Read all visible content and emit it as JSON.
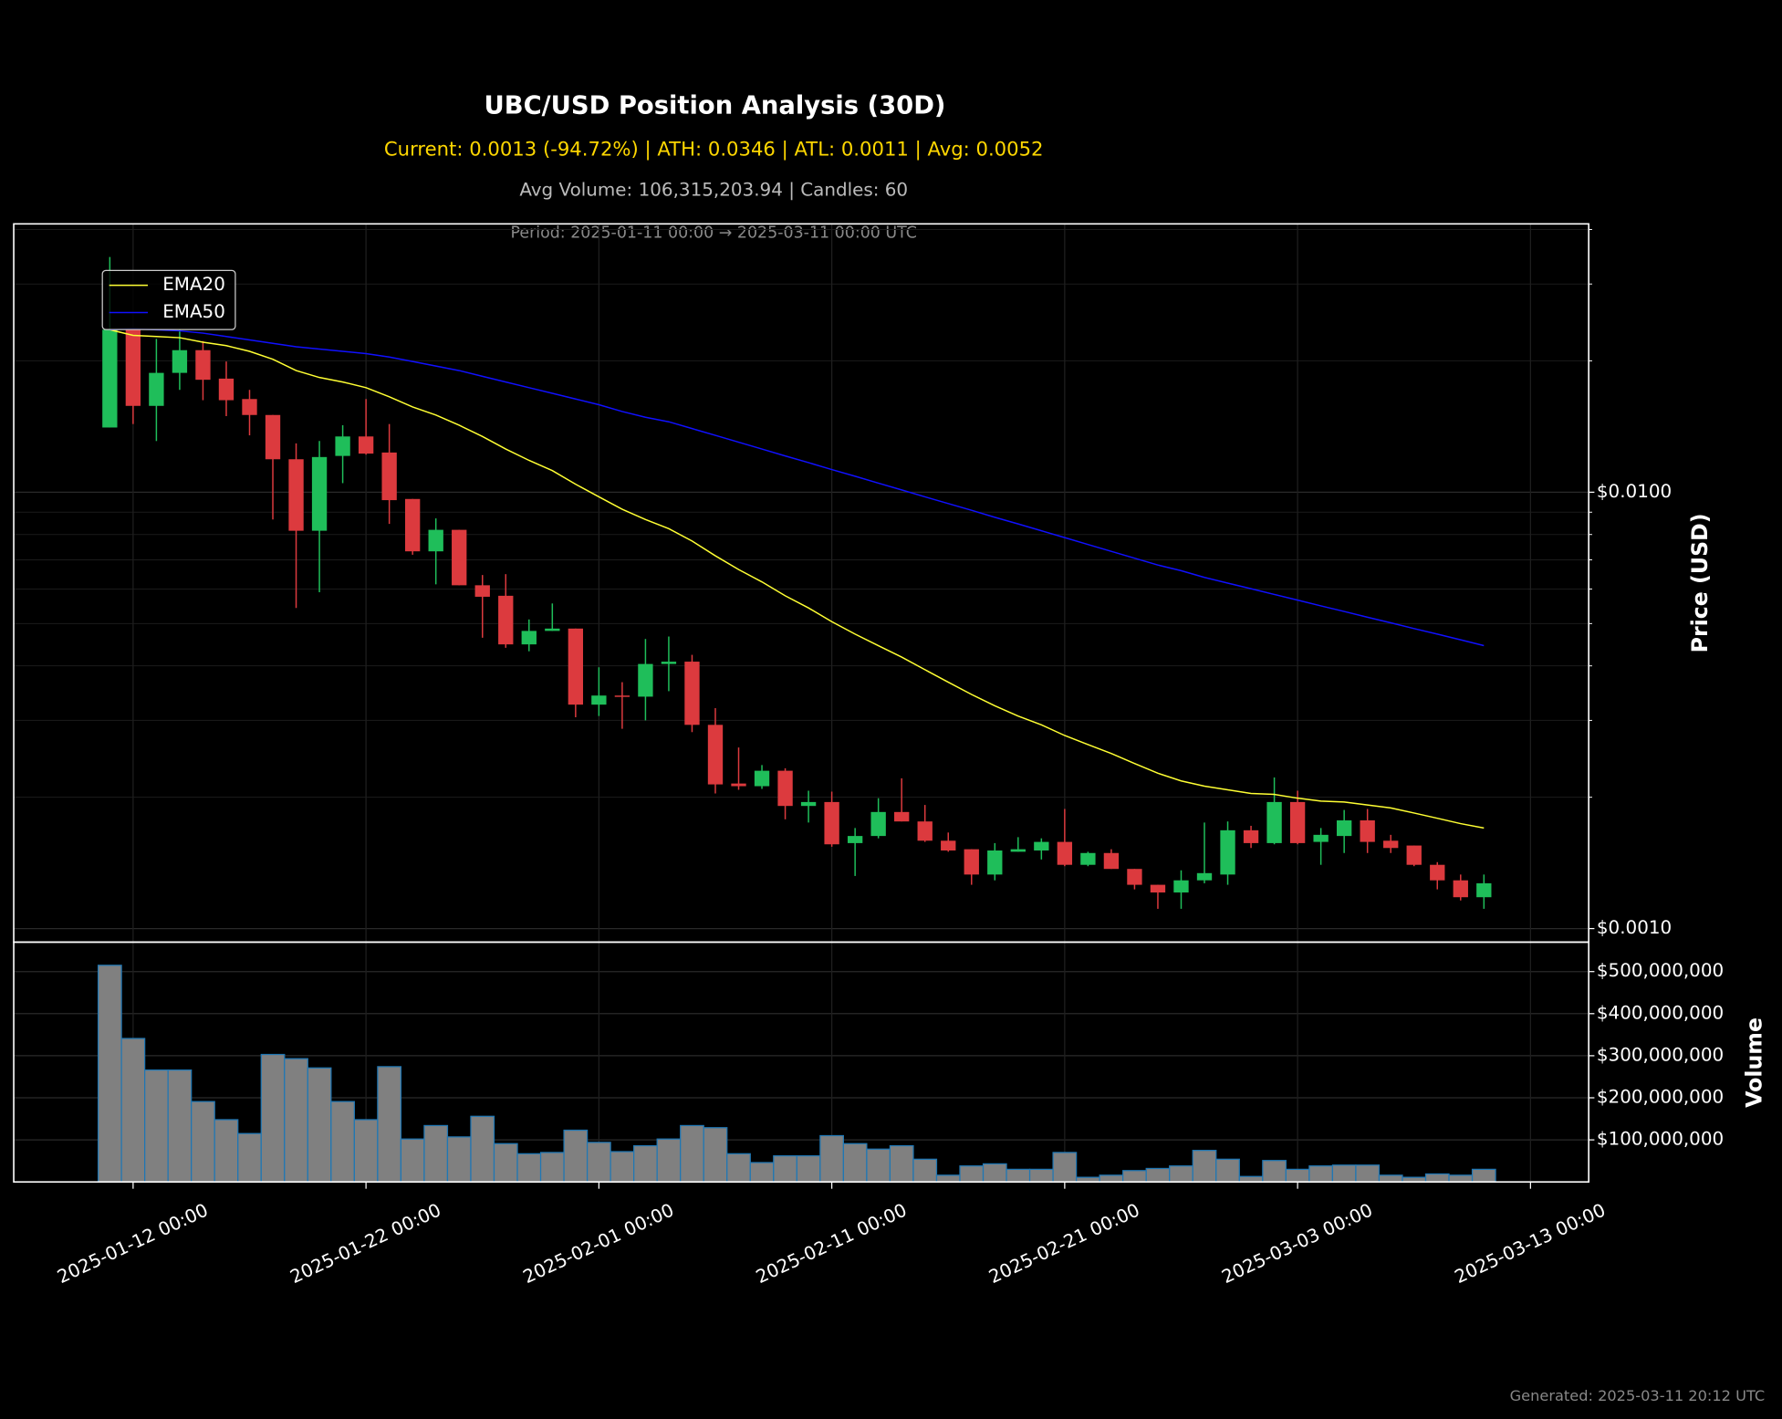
{
  "chart_data": [
    {
      "type": "candlestick",
      "title": "UBC/USD Position Analysis (30D)",
      "subtitle": "Current: 0.0013 (-94.72%) | ATH: 0.0346 | ATL: 0.0011 | Avg: 0.0052",
      "info": "Avg Volume: 106,315,203.94 | Candles: 60",
      "period": "Period: 2025-01-11 00:00 → 2025-03-11 00:00 UTC",
      "ylabel": "Price (USD)",
      "x": [
        "2025-01-11 00:00",
        "2025-01-12 00:00",
        "2025-01-13 00:00",
        "2025-01-14 00:00",
        "2025-01-15 00:00",
        "2025-01-16 00:00",
        "2025-01-17 00:00",
        "2025-01-18 00:00",
        "2025-01-19 00:00",
        "2025-01-20 00:00",
        "2025-01-21 00:00",
        "2025-01-22 00:00",
        "2025-01-23 00:00",
        "2025-01-24 00:00",
        "2025-01-25 00:00",
        "2025-01-26 00:00",
        "2025-01-27 00:00",
        "2025-01-28 00:00",
        "2025-01-29 00:00",
        "2025-01-30 00:00",
        "2025-01-31 00:00",
        "2025-02-01 00:00",
        "2025-02-02 00:00",
        "2025-02-03 00:00",
        "2025-02-04 00:00",
        "2025-02-05 00:00",
        "2025-02-06 00:00",
        "2025-02-07 00:00",
        "2025-02-08 00:00",
        "2025-02-09 00:00",
        "2025-02-10 00:00",
        "2025-02-11 00:00",
        "2025-02-12 00:00",
        "2025-02-13 00:00",
        "2025-02-14 00:00",
        "2025-02-15 00:00",
        "2025-02-16 00:00",
        "2025-02-17 00:00",
        "2025-02-18 00:00",
        "2025-02-19 00:00",
        "2025-02-20 00:00",
        "2025-02-21 00:00",
        "2025-02-22 00:00",
        "2025-02-23 00:00",
        "2025-02-24 00:00",
        "2025-02-25 00:00",
        "2025-02-26 00:00",
        "2025-02-27 00:00",
        "2025-02-28 00:00",
        "2025-03-01 00:00",
        "2025-03-02 00:00",
        "2025-03-03 00:00",
        "2025-03-04 00:00",
        "2025-03-05 00:00",
        "2025-03-06 00:00",
        "2025-03-07 00:00",
        "2025-03-08 00:00",
        "2025-03-09 00:00",
        "2025-03-10 00:00",
        "2025-03-11 00:00"
      ],
      "open": [
        0.01407,
        0.02357,
        0.01577,
        0.01877,
        0.02116,
        0.01821,
        0.01635,
        0.01503,
        0.0119,
        0.00816,
        0.01211,
        0.01342,
        0.01233,
        0.00965,
        0.00732,
        0.0082,
        0.00612,
        0.00579,
        0.00448,
        0.00481,
        0.00487,
        0.00326,
        0.00342,
        0.0034,
        0.00404,
        0.00409,
        0.00293,
        0.00215,
        0.00212,
        0.0023,
        0.00191,
        0.00195,
        0.00157,
        0.00163,
        0.00185,
        0.00176,
        0.00159,
        0.00152,
        0.00133,
        0.0015,
        0.00151,
        0.00158,
        0.0014,
        0.00149,
        0.00137,
        0.00126,
        0.00121,
        0.00129,
        0.00133,
        0.00168,
        0.00157,
        0.00195,
        0.00158,
        0.00163,
        0.00177,
        0.00159,
        0.00155,
        0.0014,
        0.00129,
        0.00118
      ],
      "high": [
        0.0346,
        0.02357,
        0.02246,
        0.02357,
        0.0222,
        0.01993,
        0.01716,
        0.01503,
        0.01294,
        0.0131,
        0.01424,
        0.01635,
        0.01433,
        0.00965,
        0.00871,
        0.0082,
        0.00646,
        0.00649,
        0.00511,
        0.00556,
        0.00487,
        0.00397,
        0.00367,
        0.00461,
        0.00467,
        0.00424,
        0.0032,
        0.0026,
        0.00237,
        0.00233,
        0.00207,
        0.00206,
        0.0017,
        0.00199,
        0.00221,
        0.00192,
        0.00166,
        0.00152,
        0.00157,
        0.00162,
        0.00161,
        0.00188,
        0.0015,
        0.00152,
        0.00137,
        0.00126,
        0.00136,
        0.00175,
        0.00176,
        0.00172,
        0.00222,
        0.00207,
        0.0017,
        0.00187,
        0.00188,
        0.00164,
        0.00155,
        0.00142,
        0.00133,
        0.00133
      ],
      "low": [
        0.01407,
        0.01433,
        0.0131,
        0.01716,
        0.01625,
        0.01494,
        0.0135,
        0.00866,
        0.00543,
        0.0059,
        0.01049,
        0.01219,
        0.00846,
        0.00719,
        0.00615,
        0.00612,
        0.00464,
        0.0044,
        0.00432,
        0.00481,
        0.00305,
        0.00307,
        0.00287,
        0.003,
        0.0035,
        0.00282,
        0.00204,
        0.00208,
        0.00209,
        0.00178,
        0.00175,
        0.00154,
        0.00132,
        0.00161,
        0.00176,
        0.00158,
        0.0015,
        0.00126,
        0.00129,
        0.0015,
        0.00144,
        0.00139,
        0.00139,
        0.00137,
        0.00123,
        0.00111,
        0.00111,
        0.00127,
        0.00126,
        0.00153,
        0.00156,
        0.00156,
        0.0014,
        0.00149,
        0.00149,
        0.00149,
        0.00139,
        0.00123,
        0.00116,
        0.00111
      ],
      "close": [
        0.02357,
        0.01577,
        0.01877,
        0.02116,
        0.0181,
        0.01625,
        0.01503,
        0.0119,
        0.00816,
        0.01204,
        0.01342,
        0.01226,
        0.00959,
        0.00732,
        0.0082,
        0.00612,
        0.00576,
        0.00448,
        0.00481,
        0.00487,
        0.00326,
        0.00342,
        0.0034,
        0.00404,
        0.00409,
        0.00293,
        0.00214,
        0.00212,
        0.0023,
        0.00191,
        0.00195,
        0.00156,
        0.00163,
        0.00185,
        0.00176,
        0.00159,
        0.00151,
        0.00133,
        0.00151,
        0.00152,
        0.00158,
        0.0014,
        0.00149,
        0.00137,
        0.00126,
        0.00121,
        0.00129,
        0.00134,
        0.00168,
        0.00157,
        0.00195,
        0.00157,
        0.00164,
        0.00177,
        0.00158,
        0.00153,
        0.0014,
        0.00129,
        0.00118,
        0.00127
      ],
      "up_color": "#1fbe5a",
      "down_color": "#dc3a3e",
      "series": [
        {
          "name": "EMA20",
          "color": "#ffff33",
          "values": [
            0.02357,
            0.02288,
            0.02274,
            0.0226,
            0.02207,
            0.02167,
            0.02103,
            0.02017,
            0.019,
            0.01832,
            0.01789,
            0.01736,
            0.01655,
            0.01568,
            0.01503,
            0.01424,
            0.01342,
            0.01256,
            0.01183,
            0.01121,
            0.01043,
            0.00976,
            0.00914,
            0.00866,
            0.00825,
            0.00773,
            0.00715,
            0.00665,
            0.00623,
            0.00579,
            0.00543,
            0.00505,
            0.00473,
            0.00445,
            0.00419,
            0.00392,
            0.00367,
            0.00344,
            0.00324,
            0.00307,
            0.00293,
            0.00277,
            0.00264,
            0.00252,
            0.00239,
            0.00227,
            0.00218,
            0.00212,
            0.00208,
            0.00204,
            0.00203,
            0.00199,
            0.00196,
            0.00195,
            0.00192,
            0.00189,
            0.00184,
            0.00179,
            0.00174,
            0.0017
          ]
        },
        {
          "name": "EMA50",
          "color": "#1010ff",
          "values": [
            0.02357,
            0.02371,
            0.02357,
            0.02343,
            0.02315,
            0.02274,
            0.02233,
            0.02194,
            0.02154,
            0.02129,
            0.02103,
            0.02078,
            0.02041,
            0.01993,
            0.01946,
            0.019,
            0.01843,
            0.01789,
            0.01736,
            0.01685,
            0.01635,
            0.01587,
            0.01531,
            0.01485,
            0.0145,
            0.01399,
            0.0135,
            0.01302,
            0.01256,
            0.01211,
            0.01169,
            0.01127,
            0.01088,
            0.01049,
            0.01012,
            0.00976,
            0.00942,
            0.00909,
            0.00876,
            0.00846,
            0.00816,
            0.00787,
            0.00759,
            0.00732,
            0.00706,
            0.00681,
            0.00661,
            0.00638,
            0.00619,
            0.00601,
            0.00583,
            0.00566,
            0.00549,
            0.00533,
            0.00517,
            0.00502,
            0.00487,
            0.00473,
            0.00459,
            0.00445
          ]
        }
      ],
      "log_scale": true,
      "ylim": [
        0.000931,
        0.0412
      ],
      "yticks": [
        {
          "value": 0.001,
          "label": "$0.0010"
        },
        {
          "value": 0.01,
          "label": "$0.0100"
        }
      ],
      "yminor_ticks": [
        0.002,
        0.003,
        0.004,
        0.005,
        0.006,
        0.007,
        0.008,
        0.009,
        0.02,
        0.03,
        0.04
      ],
      "grid": true,
      "legend": "upper left"
    },
    {
      "type": "bar",
      "ylabel": "Volume",
      "values": [
        515000000,
        341000000,
        266000000,
        266000000,
        191000000,
        148000000,
        115000000,
        303000000,
        293000000,
        271000000,
        191000000,
        148000000,
        274000000,
        102000000,
        134000000,
        107000000,
        156000000,
        91000000,
        67000000,
        70000000,
        123000000,
        94000000,
        72000000,
        86000000,
        102000000,
        134000000,
        129000000,
        67000000,
        46000000,
        62000000,
        62000000,
        110000000,
        91000000,
        78000000,
        86000000,
        54000000,
        16000000,
        38000000,
        43000000,
        30000000,
        30000000,
        70000000,
        11000000,
        16000000,
        27000000,
        32000000,
        38000000,
        75000000,
        54000000,
        13000000,
        51000000,
        30000000,
        38000000,
        40000000,
        40000000,
        16000000,
        11000000,
        19000000,
        16000000,
        30000000
      ],
      "color": "#808080",
      "edgecolor": "#1f77b4",
      "ylim": [
        0,
        570000000
      ],
      "yticks": [
        {
          "value": 100000000,
          "label": "$100,000,000"
        },
        {
          "value": 200000000,
          "label": "$200,000,000"
        },
        {
          "value": 300000000,
          "label": "$300,000,000"
        },
        {
          "value": 400000000,
          "label": "$400,000,000"
        },
        {
          "value": 500000000,
          "label": "$500,000,000"
        }
      ],
      "xlim": [
        "2025-01-06 21:00",
        "2025-03-15 12:00"
      ],
      "xticks": [
        "2025-01-12 00:00",
        "2025-01-22 00:00",
        "2025-02-01 00:00",
        "2025-02-11 00:00",
        "2025-02-21 00:00",
        "2025-03-03 00:00",
        "2025-03-13 00:00"
      ],
      "grid": true
    }
  ],
  "footer": "Generated: 2025-03-11 20:12 UTC"
}
